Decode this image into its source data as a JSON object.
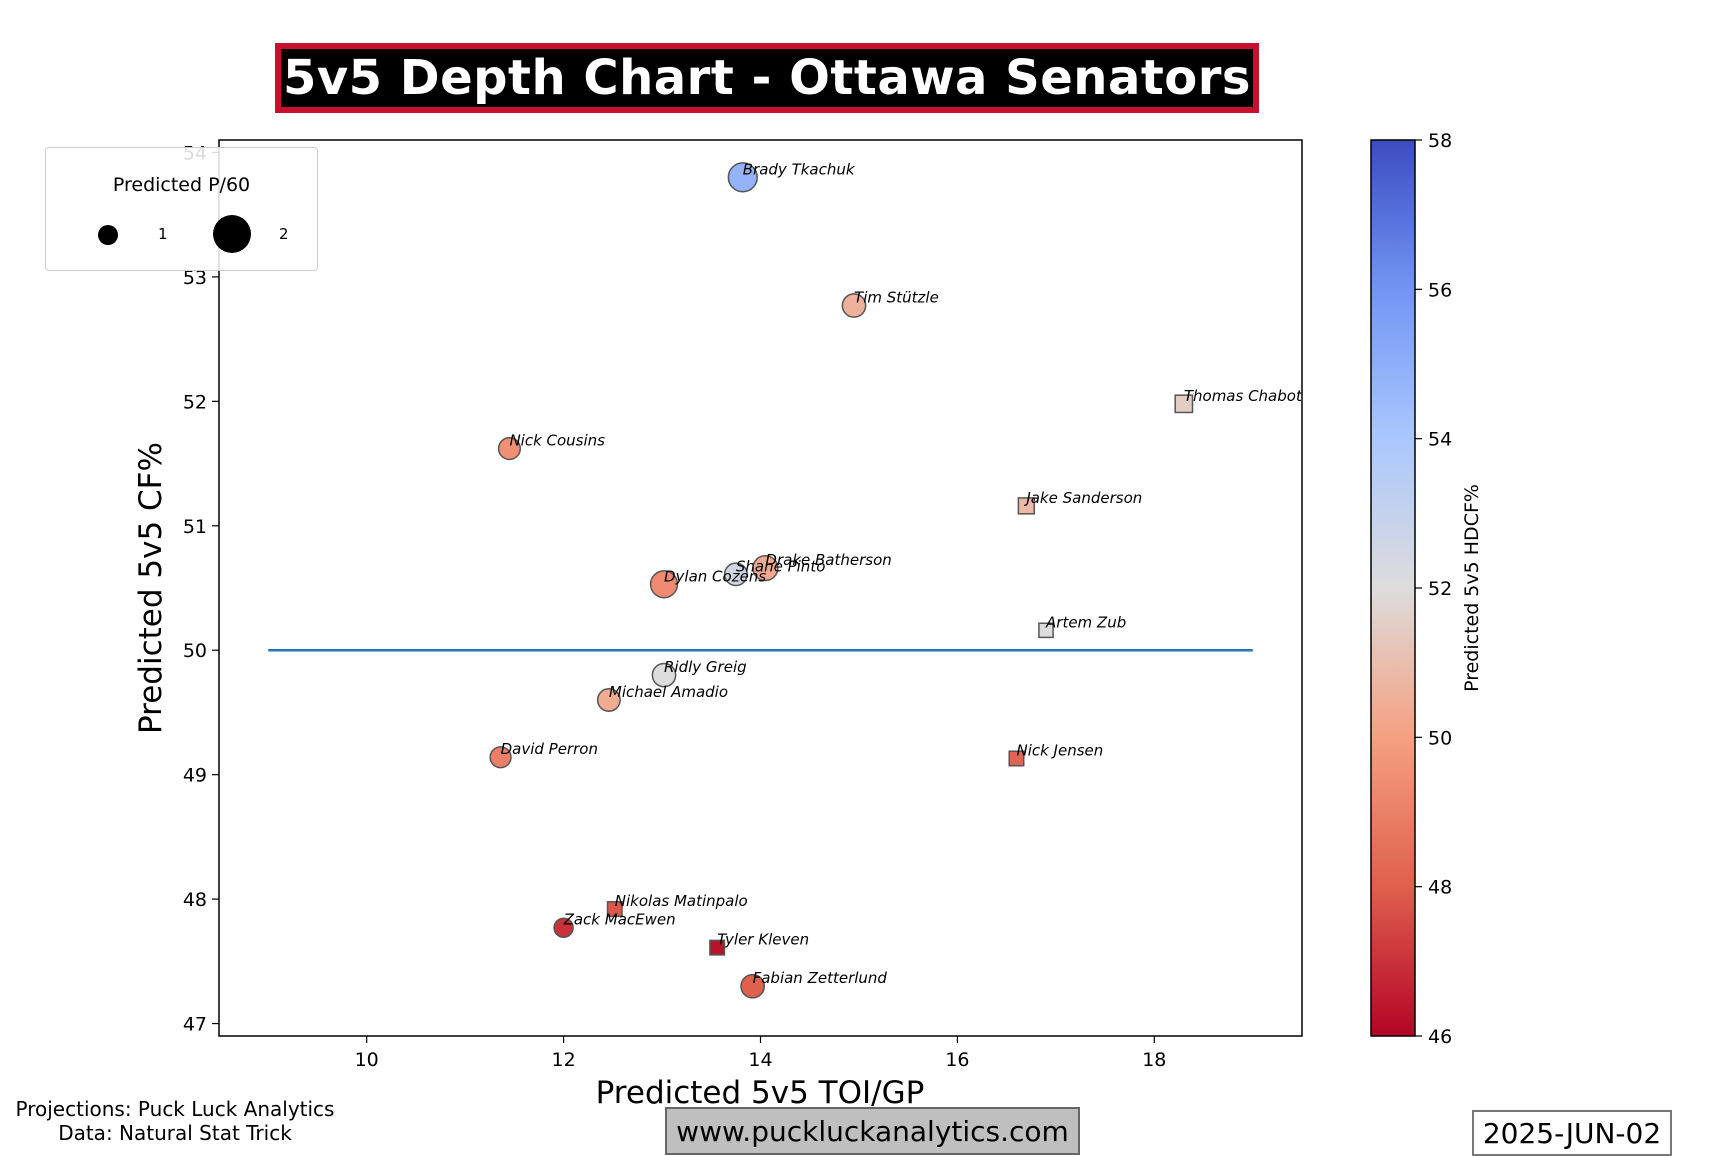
{
  "title": "5v5 Depth Chart - Ottawa Senators",
  "footer": {
    "projections": "Projections: Puck Luck Analytics",
    "data_source": "Data: Natural Stat Trick",
    "website": "www.puckluckanalytics.com",
    "date": "2025-JUN-02"
  },
  "legend": {
    "title": "Predicted P/60",
    "entries": [
      {
        "label": "1",
        "value": 1
      },
      {
        "label": "2",
        "value": 2
      }
    ]
  },
  "chart_data": {
    "type": "scatter",
    "xlabel": "Predicted 5v5 TOI/GP",
    "ylabel": "Predicted 5v5 CF%",
    "xlim": [
      8.5,
      19.5
    ],
    "ylim": [
      46.9,
      54.1
    ],
    "xticks": [
      10,
      12,
      14,
      16,
      18
    ],
    "yticks": [
      47,
      48,
      49,
      50,
      51,
      52,
      53,
      54
    ],
    "reference_line": {
      "y": 50,
      "x_from": 9,
      "x_to": 19,
      "color": "#1f77b4"
    },
    "colorbar": {
      "label": "Predicted 5v5 HDCF%",
      "min": 46,
      "max": 58,
      "ticks": [
        46,
        48,
        50,
        52,
        54,
        56,
        58
      ],
      "cmap": "coolwarm"
    },
    "marker_shapes": {
      "forward": "circle",
      "defense": "square"
    },
    "points": [
      {
        "name": "Brady Tkachuk",
        "x": 13.82,
        "y": 53.8,
        "hdcf": 54.8,
        "p60": 2.3,
        "shape": "circle"
      },
      {
        "name": "Tim Stützle",
        "x": 14.95,
        "y": 52.77,
        "hdcf": 50.6,
        "p60": 1.5,
        "shape": "circle"
      },
      {
        "name": "Thomas Chabot",
        "x": 18.3,
        "y": 51.98,
        "hdcf": 51.5,
        "p60": 0.9,
        "shape": "square"
      },
      {
        "name": "Nick Cousins",
        "x": 11.45,
        "y": 51.62,
        "hdcf": 49.5,
        "p60": 1.3,
        "shape": "circle"
      },
      {
        "name": "Jake Sanderson",
        "x": 16.7,
        "y": 51.16,
        "hdcf": 50.8,
        "p60": 0.7,
        "shape": "square"
      },
      {
        "name": "Drake Batherson",
        "x": 14.05,
        "y": 50.66,
        "hdcf": 50.3,
        "p60": 1.7,
        "shape": "circle"
      },
      {
        "name": "Shane Pinto",
        "x": 13.75,
        "y": 50.61,
        "hdcf": 52.5,
        "p60": 1.4,
        "shape": "circle"
      },
      {
        "name": "Dylan Cozens",
        "x": 13.02,
        "y": 50.53,
        "hdcf": 49.3,
        "p60": 2.0,
        "shape": "circle"
      },
      {
        "name": "Artem Zub",
        "x": 16.9,
        "y": 50.16,
        "hdcf": 52.0,
        "p60": 0.45,
        "shape": "square"
      },
      {
        "name": "Ridly Greig",
        "x": 13.02,
        "y": 49.8,
        "hdcf": 52.0,
        "p60": 1.5,
        "shape": "circle"
      },
      {
        "name": "Michael Amadio",
        "x": 12.46,
        "y": 49.6,
        "hdcf": 50.4,
        "p60": 1.4,
        "shape": "circle"
      },
      {
        "name": "David Perron",
        "x": 11.36,
        "y": 49.14,
        "hdcf": 49.0,
        "p60": 1.2,
        "shape": "circle"
      },
      {
        "name": "Nick Jensen",
        "x": 16.6,
        "y": 49.13,
        "hdcf": 48.2,
        "p60": 0.5,
        "shape": "square"
      },
      {
        "name": "Nikolas Matinpalo",
        "x": 12.52,
        "y": 47.92,
        "hdcf": 47.8,
        "p60": 0.5,
        "shape": "square"
      },
      {
        "name": "Zack MacEwen",
        "x": 12.0,
        "y": 47.77,
        "hdcf": 47.0,
        "p60": 1.0,
        "shape": "circle"
      },
      {
        "name": "Tyler Kleven",
        "x": 13.56,
        "y": 47.61,
        "hdcf": 46.3,
        "p60": 0.5,
        "shape": "square"
      },
      {
        "name": "Fabian Zetterlund",
        "x": 13.92,
        "y": 47.3,
        "hdcf": 48.0,
        "p60": 1.5,
        "shape": "circle"
      }
    ]
  }
}
